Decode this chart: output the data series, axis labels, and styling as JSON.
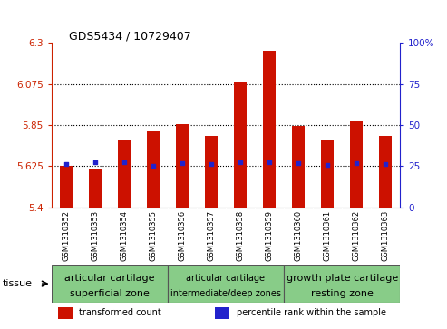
{
  "title": "GDS5434 / 10729407",
  "samples": [
    "GSM1310352",
    "GSM1310353",
    "GSM1310354",
    "GSM1310355",
    "GSM1310356",
    "GSM1310357",
    "GSM1310358",
    "GSM1310359",
    "GSM1310360",
    "GSM1310361",
    "GSM1310362",
    "GSM1310363"
  ],
  "bar_tops": [
    5.625,
    5.607,
    5.77,
    5.822,
    5.855,
    5.792,
    6.09,
    6.255,
    5.847,
    5.77,
    5.875,
    5.792
  ],
  "bar_bottom": 5.4,
  "percentile_values": [
    5.637,
    5.647,
    5.647,
    5.627,
    5.64,
    5.635,
    5.647,
    5.647,
    5.641,
    5.63,
    5.641,
    5.636
  ],
  "ylim_left": [
    5.4,
    6.3
  ],
  "ylim_right": [
    0,
    100
  ],
  "yticks_left": [
    5.4,
    5.625,
    5.85,
    6.075,
    6.3
  ],
  "yticks_right": [
    0,
    25,
    50,
    75,
    100
  ],
  "hlines": [
    5.625,
    5.85,
    6.075
  ],
  "bar_color": "#cc1100",
  "dot_color": "#2222cc",
  "bar_width": 0.45,
  "tissue_groups": [
    {
      "label_line1": "articular cartilage",
      "label_line2": "superficial zone",
      "start": 0,
      "end": 4,
      "fontsize1": 8,
      "fontsize2": 8
    },
    {
      "label_line1": "articular cartilage",
      "label_line2": "intermediate/deep zones",
      "start": 4,
      "end": 8,
      "fontsize1": 7,
      "fontsize2": 7
    },
    {
      "label_line1": "growth plate cartilage",
      "label_line2": "resting zone",
      "start": 8,
      "end": 12,
      "fontsize1": 8,
      "fontsize2": 8
    }
  ],
  "tissue_label": "tissue",
  "legend_items": [
    {
      "color": "#cc1100",
      "label": "transformed count"
    },
    {
      "color": "#2222cc",
      "label": "percentile rank within the sample"
    }
  ],
  "left_tick_color": "#cc2200",
  "right_tick_color": "#2222cc",
  "xtick_bg_color": "#cccccc",
  "tissue_bg_color": "#88cc88",
  "plot_bg_color": "#ffffff"
}
